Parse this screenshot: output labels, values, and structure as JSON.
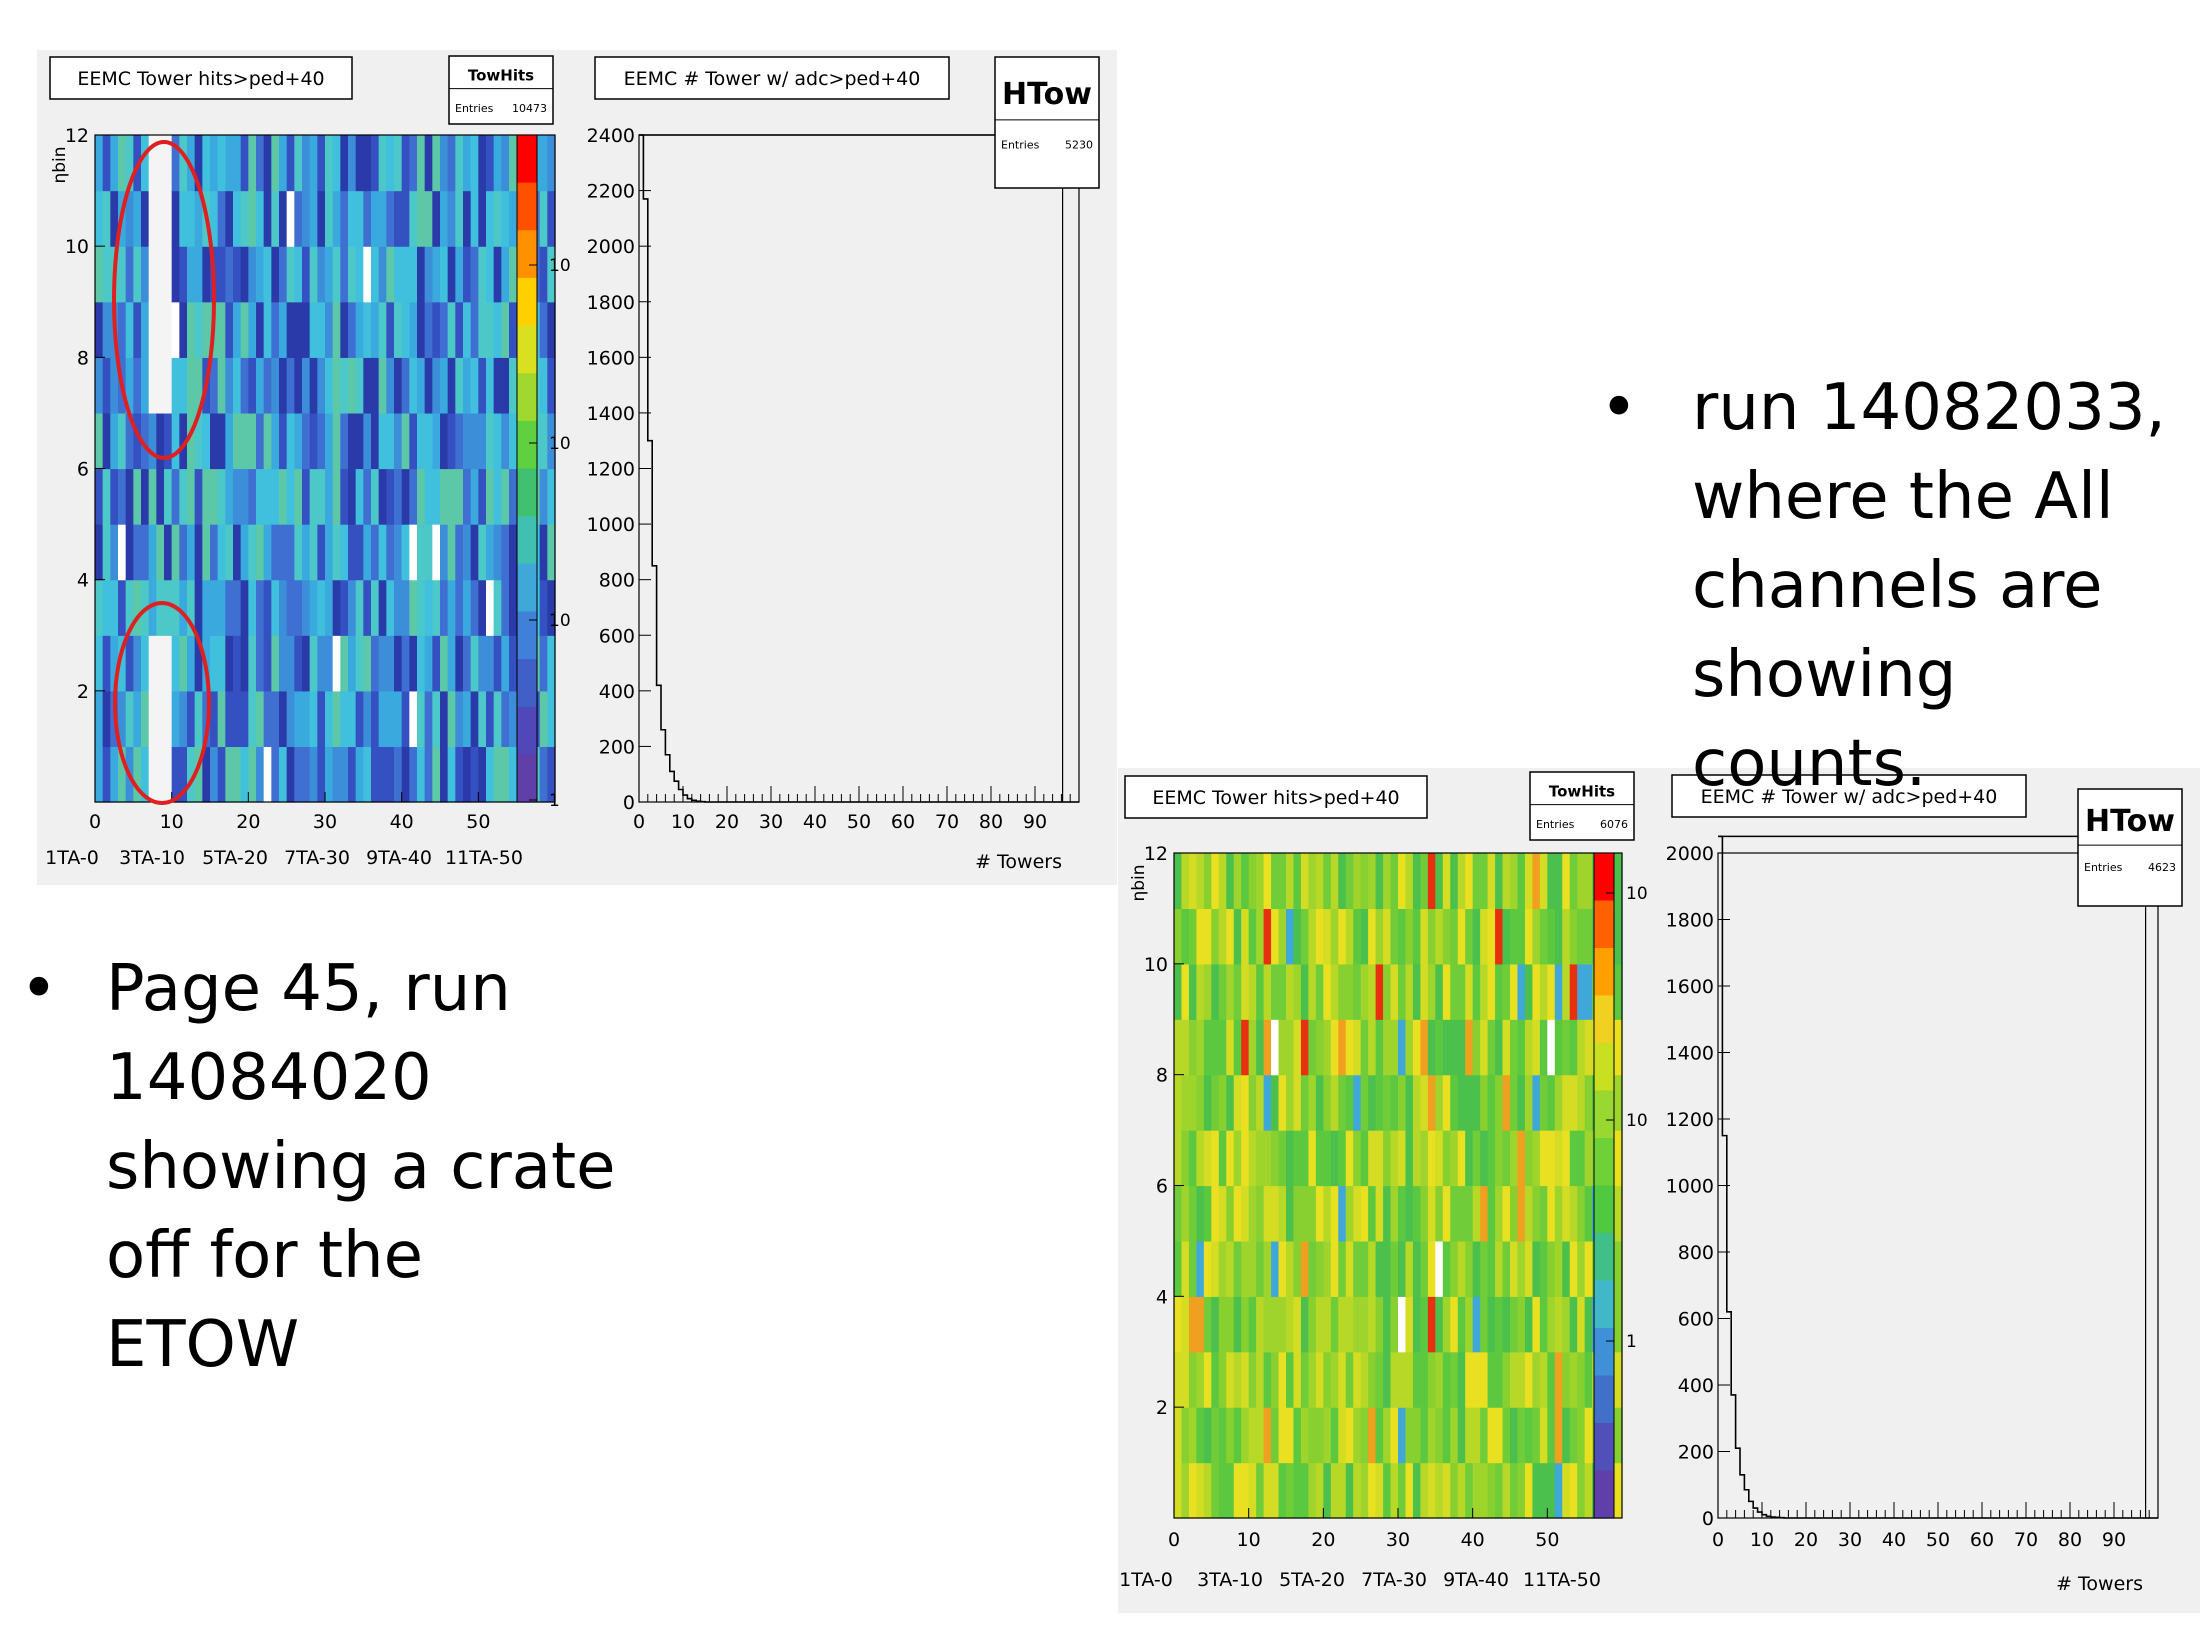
{
  "bullets": {
    "left": {
      "marker": "•",
      "text": "Page 45, run\n14084020\nshowing a crate\noff for the\nETOW"
    },
    "right": {
      "marker": "•",
      "text": "run 14082033,\nwhere the All\nchannels are\nshowing counts."
    }
  },
  "colors": {
    "panel_bg": "#f0f0f0",
    "highlight_ellipse": "#e02020",
    "axis": "#000000"
  },
  "chart_data": [
    {
      "id": "top_hits",
      "type": "heatmap",
      "title": "EEMC Tower hits>ped+40",
      "stats": {
        "name": "TowHits",
        "entries_label": "Entries",
        "entries": "10473"
      },
      "ylabel": "ηbin",
      "x_ticks": [
        "0",
        "10",
        "20",
        "30",
        "40",
        "50"
      ],
      "x_bottom_labels": [
        "1TA-0",
        "3TA-10",
        "5TA-20",
        "7TA-30",
        "9TA-40",
        "11TA-50"
      ],
      "y_ticks": [
        "2",
        "4",
        "6",
        "8",
        "10",
        "12"
      ],
      "xlim": [
        0,
        60
      ],
      "ylim": [
        0,
        12
      ],
      "log_z": true,
      "z_ticks": [
        "10",
        "10",
        "10",
        "1"
      ],
      "palette": "blue",
      "empty_blocks": [
        {
          "x0": 7,
          "x1": 10,
          "y0": 7,
          "y1": 12
        },
        {
          "x0": 7,
          "x1": 10,
          "y0": 0,
          "y1": 3
        }
      ],
      "highlight_ellipses": 2
    },
    {
      "id": "top_ntowers",
      "type": "line",
      "title": "EEMC # Tower w/ adc>ped+40",
      "stats": {
        "name": "HTow",
        "entries_label": "Entries",
        "entries": "5230"
      },
      "xlabel": "# Towers",
      "x_ticks": [
        "0",
        "10",
        "20",
        "30",
        "40",
        "50",
        "60",
        "70",
        "80",
        "90"
      ],
      "y_ticks": [
        "0",
        "200",
        "400",
        "600",
        "800",
        "1000",
        "1200",
        "1400",
        "1600",
        "1800",
        "2000",
        "2200",
        "2400"
      ],
      "xlim": [
        0,
        100
      ],
      "ylim": [
        0,
        2400
      ],
      "x": [
        0,
        1,
        2,
        3,
        4,
        5,
        6,
        7,
        8,
        9,
        10,
        11,
        12,
        13,
        14,
        15
      ],
      "values": [
        2400,
        2170,
        1300,
        850,
        420,
        260,
        170,
        110,
        75,
        45,
        25,
        12,
        6,
        3,
        1,
        0
      ]
    },
    {
      "id": "bottom_hits",
      "type": "heatmap",
      "title": "EEMC Tower hits>ped+40",
      "stats": {
        "name": "TowHits",
        "entries_label": "Entries",
        "entries": "6076"
      },
      "ylabel": "ηbin",
      "x_ticks": [
        "0",
        "10",
        "20",
        "30",
        "40",
        "50"
      ],
      "x_bottom_labels": [
        "1TA-0",
        "3TA-10",
        "5TA-20",
        "7TA-30",
        "9TA-40",
        "11TA-50"
      ],
      "y_ticks": [
        "2",
        "4",
        "6",
        "8",
        "10",
        "12"
      ],
      "xlim": [
        0,
        60
      ],
      "ylim": [
        0,
        12
      ],
      "log_z": true,
      "z_ticks": [
        "10",
        "10",
        "1"
      ],
      "palette": "green",
      "empty_blocks": []
    },
    {
      "id": "bottom_ntowers",
      "type": "line",
      "title": "EEMC # Tower w/ adc>ped+40",
      "stats": {
        "name": "HTow",
        "entries_label": "Entries",
        "entries": "4623"
      },
      "xlabel": "# Towers",
      "x_ticks": [
        "0",
        "10",
        "20",
        "30",
        "40",
        "50",
        "60",
        "70",
        "80",
        "90"
      ],
      "y_ticks": [
        "0",
        "200",
        "400",
        "600",
        "800",
        "1000",
        "1200",
        "1400",
        "1600",
        "1800",
        "2000"
      ],
      "xlim": [
        0,
        100
      ],
      "ylim": [
        0,
        2000
      ],
      "x": [
        0,
        1,
        2,
        3,
        4,
        5,
        6,
        7,
        8,
        9,
        10,
        11,
        12,
        13,
        14,
        15
      ],
      "values": [
        2050,
        1150,
        620,
        370,
        210,
        130,
        85,
        50,
        30,
        18,
        10,
        5,
        3,
        2,
        1,
        0
      ]
    }
  ]
}
